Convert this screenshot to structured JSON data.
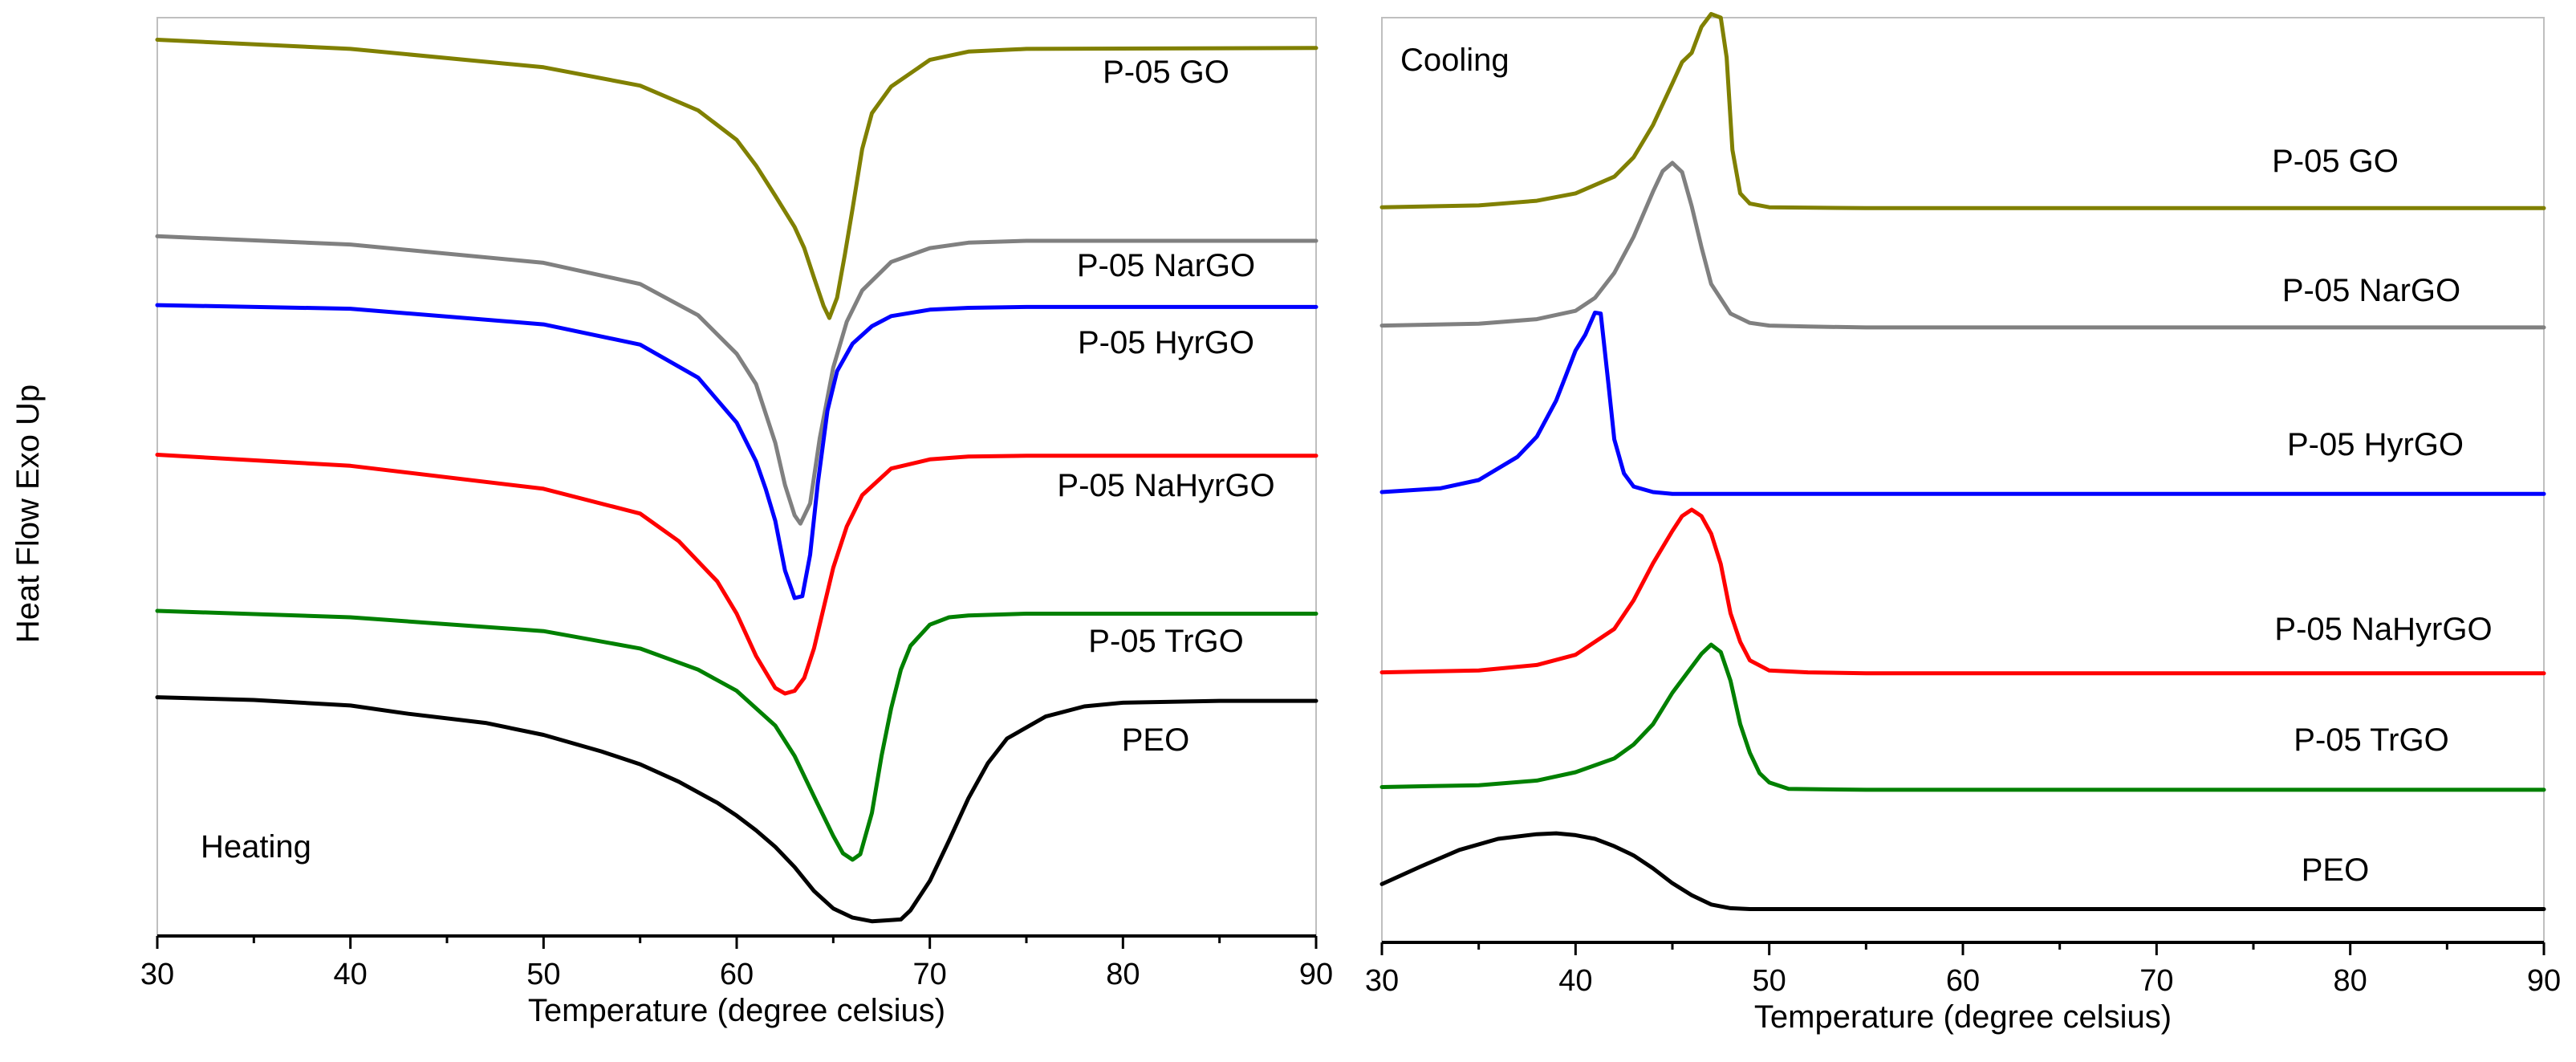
{
  "ylabel": "Heat Flow Exo Up",
  "chart_data": [
    {
      "type": "line",
      "panel": "Heating",
      "xlabel": "Temperature (degree celsius)",
      "xlim": [
        30,
        90
      ],
      "xticks": [
        "30",
        "40",
        "50",
        "60",
        "70",
        "80",
        "90"
      ],
      "series": [
        {
          "name": "P-05 GO",
          "color": "#808000",
          "x": [
            30,
            40,
            50,
            55,
            58,
            60,
            61,
            62,
            63,
            63.5,
            64,
            64.5,
            64.8,
            65.2,
            65.6,
            66.0,
            66.5,
            67,
            68,
            70,
            72,
            75,
            90
          ],
          "y": [
            0.976,
            0.966,
            0.946,
            0.926,
            0.899,
            0.867,
            0.839,
            0.806,
            0.772,
            0.749,
            0.717,
            0.686,
            0.673,
            0.695,
            0.742,
            0.792,
            0.857,
            0.896,
            0.925,
            0.954,
            0.963,
            0.966,
            0.967
          ]
        },
        {
          "name": "P-05 NarGO",
          "color": "#808080",
          "x": [
            30,
            40,
            50,
            55,
            58,
            60,
            61,
            62,
            62.5,
            63,
            63.3,
            63.8,
            64.3,
            65,
            65.7,
            66.5,
            68,
            70,
            72,
            75,
            90
          ],
          "y": [
            0.762,
            0.753,
            0.733,
            0.71,
            0.676,
            0.634,
            0.601,
            0.537,
            0.491,
            0.458,
            0.449,
            0.471,
            0.542,
            0.619,
            0.669,
            0.703,
            0.734,
            0.749,
            0.755,
            0.757,
            0.757
          ]
        },
        {
          "name": "P-05 HyrGO",
          "color": "#0000ff",
          "x": [
            30,
            40,
            50,
            55,
            58,
            60,
            61,
            61.5,
            62,
            62.5,
            63,
            63.4,
            63.8,
            64.2,
            64.7,
            65.2,
            66,
            67,
            68,
            70,
            72,
            75,
            90
          ],
          "y": [
            0.687,
            0.683,
            0.666,
            0.644,
            0.608,
            0.559,
            0.517,
            0.487,
            0.452,
            0.398,
            0.368,
            0.37,
            0.415,
            0.493,
            0.572,
            0.615,
            0.645,
            0.664,
            0.675,
            0.682,
            0.684,
            0.685,
            0.685
          ]
        },
        {
          "name": "P-05 NaHyrGO",
          "color": "#ff0000",
          "x": [
            30,
            40,
            50,
            55,
            57,
            59,
            60,
            61,
            62,
            62.5,
            63,
            63.5,
            64,
            64.5,
            65,
            65.7,
            66.5,
            68,
            70,
            72,
            75,
            90
          ],
          "y": [
            0.524,
            0.512,
            0.487,
            0.46,
            0.43,
            0.386,
            0.351,
            0.305,
            0.27,
            0.264,
            0.267,
            0.281,
            0.313,
            0.357,
            0.401,
            0.446,
            0.48,
            0.509,
            0.519,
            0.522,
            0.523,
            0.523
          ]
        },
        {
          "name": "P-05 TrGO",
          "color": "#008000",
          "x": [
            30,
            40,
            50,
            55,
            58,
            60,
            62,
            63,
            64,
            65,
            65.5,
            66,
            66.4,
            67,
            67.5,
            68,
            68.5,
            69,
            70,
            71,
            72,
            75,
            80,
            90
          ],
          "y": [
            0.354,
            0.347,
            0.332,
            0.313,
            0.29,
            0.267,
            0.229,
            0.196,
            0.152,
            0.109,
            0.09,
            0.083,
            0.089,
            0.134,
            0.196,
            0.248,
            0.29,
            0.316,
            0.339,
            0.347,
            0.349,
            0.351,
            0.351,
            0.351
          ]
        },
        {
          "name": "PEO",
          "color": "#000000",
          "x": [
            30,
            35,
            40,
            43,
            47,
            50,
            53,
            55,
            57,
            59,
            60,
            61,
            62,
            63,
            64,
            65,
            66,
            67,
            68.5,
            69,
            70,
            71,
            72,
            73,
            74,
            76,
            78,
            80,
            85,
            90
          ],
          "y": [
            0.26,
            0.257,
            0.251,
            0.242,
            0.232,
            0.219,
            0.201,
            0.187,
            0.168,
            0.145,
            0.131,
            0.115,
            0.097,
            0.075,
            0.049,
            0.03,
            0.02,
            0.016,
            0.018,
            0.028,
            0.06,
            0.104,
            0.15,
            0.188,
            0.215,
            0.239,
            0.25,
            0.254,
            0.256,
            0.256
          ]
        }
      ]
    },
    {
      "type": "line",
      "panel": "Cooling",
      "xlabel": "Temperature (degree celsius)",
      "xlim": [
        30,
        90
      ],
      "xticks": [
        "30",
        "40",
        "50",
        "60",
        "70",
        "80",
        "90"
      ],
      "series": [
        {
          "name": "P-05 GO",
          "color": "#808000",
          "x": [
            30,
            35,
            38,
            40,
            42,
            43,
            44,
            45,
            45.5,
            46,
            46.5,
            47,
            47.5,
            47.8,
            48.1,
            48.5,
            49,
            50,
            55,
            90
          ],
          "y": [
            0.795,
            0.797,
            0.802,
            0.81,
            0.828,
            0.849,
            0.884,
            0.929,
            0.952,
            0.962,
            0.99,
            1.004,
            1.0,
            0.957,
            0.857,
            0.81,
            0.799,
            0.795,
            0.794,
            0.794
          ]
        },
        {
          "name": "P-05 NarGO",
          "color": "#808080",
          "x": [
            30,
            35,
            38,
            40,
            41,
            42,
            43,
            44,
            44.5,
            45,
            45.5,
            46,
            46.5,
            47,
            48,
            49,
            50,
            52,
            55,
            90
          ],
          "y": [
            0.667,
            0.669,
            0.674,
            0.683,
            0.697,
            0.724,
            0.763,
            0.812,
            0.834,
            0.843,
            0.833,
            0.796,
            0.752,
            0.712,
            0.68,
            0.67,
            0.667,
            0.666,
            0.665,
            0.665
          ]
        },
        {
          "name": "P-05 HyrGO",
          "color": "#0000ff",
          "x": [
            30,
            33,
            35,
            37,
            38,
            39,
            39.5,
            40,
            40.5,
            41,
            41.3,
            41.7,
            42,
            42.5,
            43,
            44,
            45,
            90
          ],
          "y": [
            0.487,
            0.491,
            0.5,
            0.525,
            0.547,
            0.586,
            0.613,
            0.64,
            0.657,
            0.681,
            0.68,
            0.603,
            0.544,
            0.507,
            0.493,
            0.487,
            0.485,
            0.485
          ]
        },
        {
          "name": "P-05 NaHyrGO",
          "color": "#ff0000",
          "x": [
            30,
            35,
            38,
            40,
            42,
            43,
            44,
            45,
            45.5,
            46,
            46.5,
            47,
            47.5,
            48,
            48.5,
            49,
            50,
            52,
            55,
            90
          ],
          "y": [
            0.292,
            0.294,
            0.3,
            0.311,
            0.339,
            0.37,
            0.41,
            0.445,
            0.461,
            0.468,
            0.461,
            0.442,
            0.409,
            0.356,
            0.325,
            0.305,
            0.294,
            0.292,
            0.291,
            0.291
          ]
        },
        {
          "name": "P-05 TrGO",
          "color": "#008000",
          "x": [
            30,
            35,
            38,
            40,
            42,
            43,
            44,
            45,
            46,
            46.5,
            47,
            47.5,
            48,
            48.5,
            49,
            49.5,
            50,
            51,
            55,
            90
          ],
          "y": [
            0.168,
            0.17,
            0.175,
            0.184,
            0.199,
            0.214,
            0.236,
            0.27,
            0.298,
            0.312,
            0.322,
            0.314,
            0.283,
            0.236,
            0.205,
            0.183,
            0.173,
            0.166,
            0.165,
            0.165
          ]
        },
        {
          "name": "PEO",
          "color": "#000000",
          "x": [
            30,
            32,
            34,
            36,
            38,
            39,
            40,
            41,
            42,
            43,
            44,
            45,
            46,
            47,
            48,
            49,
            50,
            55,
            90
          ],
          "y": [
            0.063,
            0.082,
            0.1,
            0.112,
            0.117,
            0.118,
            0.116,
            0.112,
            0.104,
            0.094,
            0.08,
            0.064,
            0.051,
            0.041,
            0.037,
            0.036,
            0.036,
            0.036,
            0.036
          ]
        }
      ]
    }
  ]
}
